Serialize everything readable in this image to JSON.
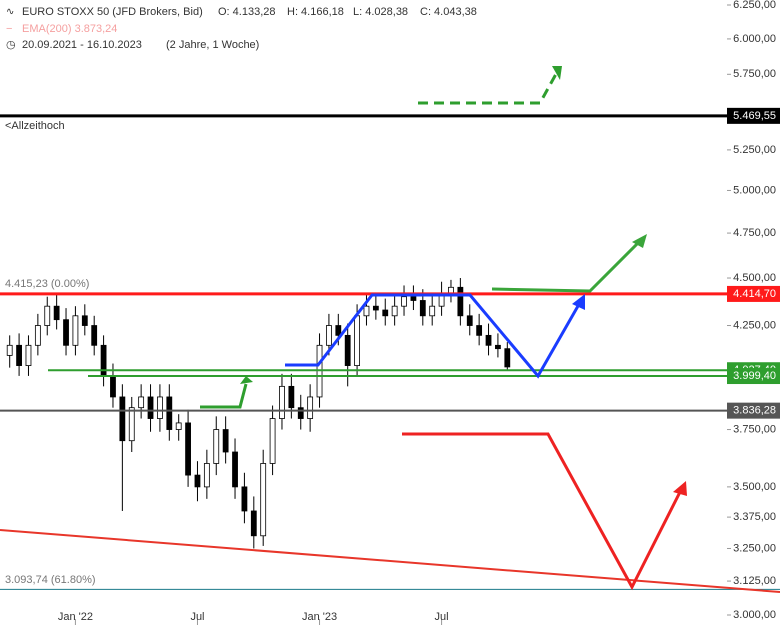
{
  "header": {
    "symbol": "EURO STOXX 50 (JFD Brokers, Bid)",
    "open": "O: 4.133,28",
    "high": "H: 4.166,18",
    "low": "L: 4.028,38",
    "close": "C: 4.043,38",
    "ema": "EMA(200) 3.873,24",
    "range": "20.09.2021 - 16.10.2023",
    "span": "(2 Jahre, 1 Woche)"
  },
  "chart_data": {
    "type": "candlestick",
    "categories": [
      null,
      null,
      null,
      null,
      null,
      null,
      null,
      "Jan '22",
      null,
      null,
      null,
      null,
      null,
      null,
      null,
      null,
      null,
      null,
      null,
      null,
      "Jul",
      null,
      null,
      null,
      null,
      null,
      null,
      null,
      null,
      null,
      null,
      null,
      null,
      "Jan '23",
      null,
      null,
      null,
      null,
      null,
      null,
      null,
      null,
      null,
      null,
      null,
      null,
      "Jul",
      null,
      null,
      null,
      null,
      null,
      null,
      null
    ],
    "open": [
      4100,
      4150,
      4050,
      4150,
      4250,
      4350,
      4280,
      4150,
      4300,
      4250,
      4150,
      4000,
      3900,
      3700,
      3850,
      3900,
      3800,
      3900,
      3750,
      3780,
      3550,
      3500,
      3600,
      3750,
      3650,
      3500,
      3400,
      3300,
      3600,
      3800,
      3950,
      3850,
      3800,
      3900,
      4150,
      4250,
      4200,
      4050,
      4300,
      4350,
      4330,
      4300,
      4350,
      4400,
      4380,
      4300,
      4350,
      4420,
      4450,
      4300,
      4250,
      4200,
      4150,
      4133.28
    ],
    "high": [
      4200,
      4210,
      4200,
      4310,
      4400,
      4410,
      4340,
      4350,
      4360,
      4300,
      4200,
      4060,
      3960,
      3900,
      3960,
      3960,
      3960,
      3960,
      3820,
      3840,
      3610,
      3660,
      3810,
      3810,
      3710,
      3560,
      3460,
      3660,
      3860,
      4010,
      4010,
      3910,
      3960,
      4210,
      4310,
      4310,
      4260,
      4360,
      4410,
      4410,
      4390,
      4410,
      4460,
      4460,
      4440,
      4410,
      4480,
      4490,
      4500,
      4360,
      4310,
      4260,
      4210,
      4166.18
    ],
    "low": [
      4040,
      4000,
      4000,
      4100,
      4200,
      4230,
      4100,
      4100,
      4200,
      4100,
      3950,
      3850,
      3400,
      3650,
      3800,
      3740,
      3740,
      3700,
      3700,
      3500,
      3440,
      3450,
      3550,
      3600,
      3450,
      3350,
      3250,
      3260,
      3550,
      3750,
      3800,
      3750,
      3740,
      3850,
      4100,
      4150,
      3950,
      4000,
      4250,
      4280,
      4250,
      4250,
      4300,
      4330,
      4250,
      4250,
      4300,
      4370,
      4250,
      4200,
      4150,
      4100,
      4090,
      4028.38
    ],
    "close": [
      4150,
      4050,
      4150,
      4250,
      4350,
      4280,
      4150,
      4300,
      4250,
      4150,
      4000,
      3900,
      3700,
      3850,
      3900,
      3800,
      3900,
      3750,
      3780,
      3550,
      3500,
      3600,
      3750,
      3650,
      3500,
      3400,
      3300,
      3600,
      3800,
      3950,
      3850,
      3800,
      3900,
      4150,
      4250,
      4200,
      4050,
      4300,
      4350,
      4330,
      4300,
      4350,
      4400,
      4380,
      4300,
      4350,
      4420,
      4450,
      4300,
      4250,
      4200,
      4150,
      4133.28,
      4043.38
    ],
    "ylim": [
      3000,
      6250
    ],
    "log_scale": true,
    "yticks": [
      {
        "value": 3000,
        "label": "3.000,00"
      },
      {
        "value": 3125,
        "label": "3.125,00"
      },
      {
        "value": 3250,
        "label": "3.250,00"
      },
      {
        "value": 3375,
        "label": "3.375,00"
      },
      {
        "value": 3500,
        "label": "3.500,00"
      },
      {
        "value": 3750,
        "label": "3.750,00"
      },
      {
        "value": 4250,
        "label": "4.250,00"
      },
      {
        "value": 4500,
        "label": "4.500,00"
      },
      {
        "value": 4750,
        "label": "4.750,00"
      },
      {
        "value": 5000,
        "label": "5.000,00"
      },
      {
        "value": 5250,
        "label": "5.250,00"
      },
      {
        "value": 5750,
        "label": "5.750,00"
      },
      {
        "value": 6000,
        "label": "6.000,00"
      },
      {
        "value": 6250,
        "label": "6.250,00"
      }
    ],
    "levels": [
      {
        "value": 5469.55,
        "label": "5.469,55",
        "color": "#000000"
      },
      {
        "value": 4414.7,
        "label": "4.414,70",
        "color": "#ff1a1a"
      },
      {
        "value": 4027.4,
        "label": "4.027,40",
        "color": "#2e9e2e"
      },
      {
        "value": 3999.4,
        "label": "3.999,40",
        "color": "#2e9e2e"
      },
      {
        "value": 3836.28,
        "label": "3.836,28",
        "color": "#555555"
      },
      {
        "value": 3093.74,
        "color": "#1a7a8a"
      }
    ],
    "annotations": [
      "<Allzeithoch",
      "4.415,23 (0.00%)",
      "3.093,74 (61.80%)"
    ]
  }
}
